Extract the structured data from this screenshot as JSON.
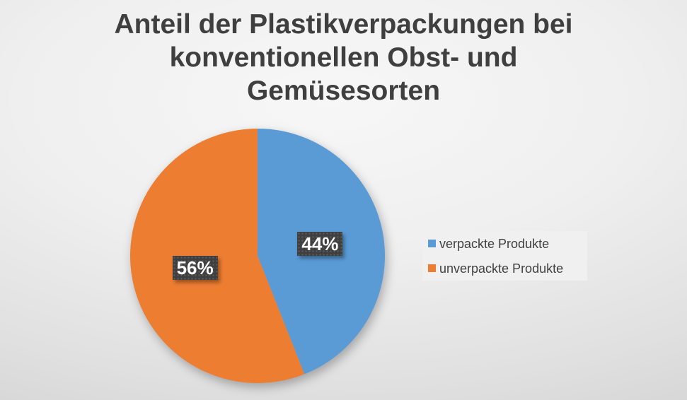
{
  "title": {
    "lines": [
      "Anteil der Plastikverpackungen bei",
      "konventionellen Obst- und",
      "Gemüsesorten"
    ],
    "color": "#3F3F3F"
  },
  "legend": {
    "items": [
      {
        "label": "verpackte Produkte",
        "color": "#5B9BD5"
      },
      {
        "label": "unverpackte Produkte",
        "color": "#ED7D31"
      }
    ],
    "background": "#F0F0F0"
  },
  "chart_data": {
    "type": "pie",
    "title": "Anteil der Plastikverpackungen bei konventionellen Obst- und Gemüsesorten",
    "categories": [
      "verpackte Produkte",
      "unverpackte Produkte"
    ],
    "values": [
      44,
      56
    ],
    "unit": "%",
    "data_labels": [
      "44%",
      "56%"
    ],
    "series_colors": [
      "#5B9BD5",
      "#ED7D31"
    ],
    "data_label_text_color": "#FFFFFF",
    "data_label_background": "#3F3F3F",
    "start_angle_deg": 0,
    "direction": "clockwise",
    "legend_position": "right",
    "grid": false
  }
}
